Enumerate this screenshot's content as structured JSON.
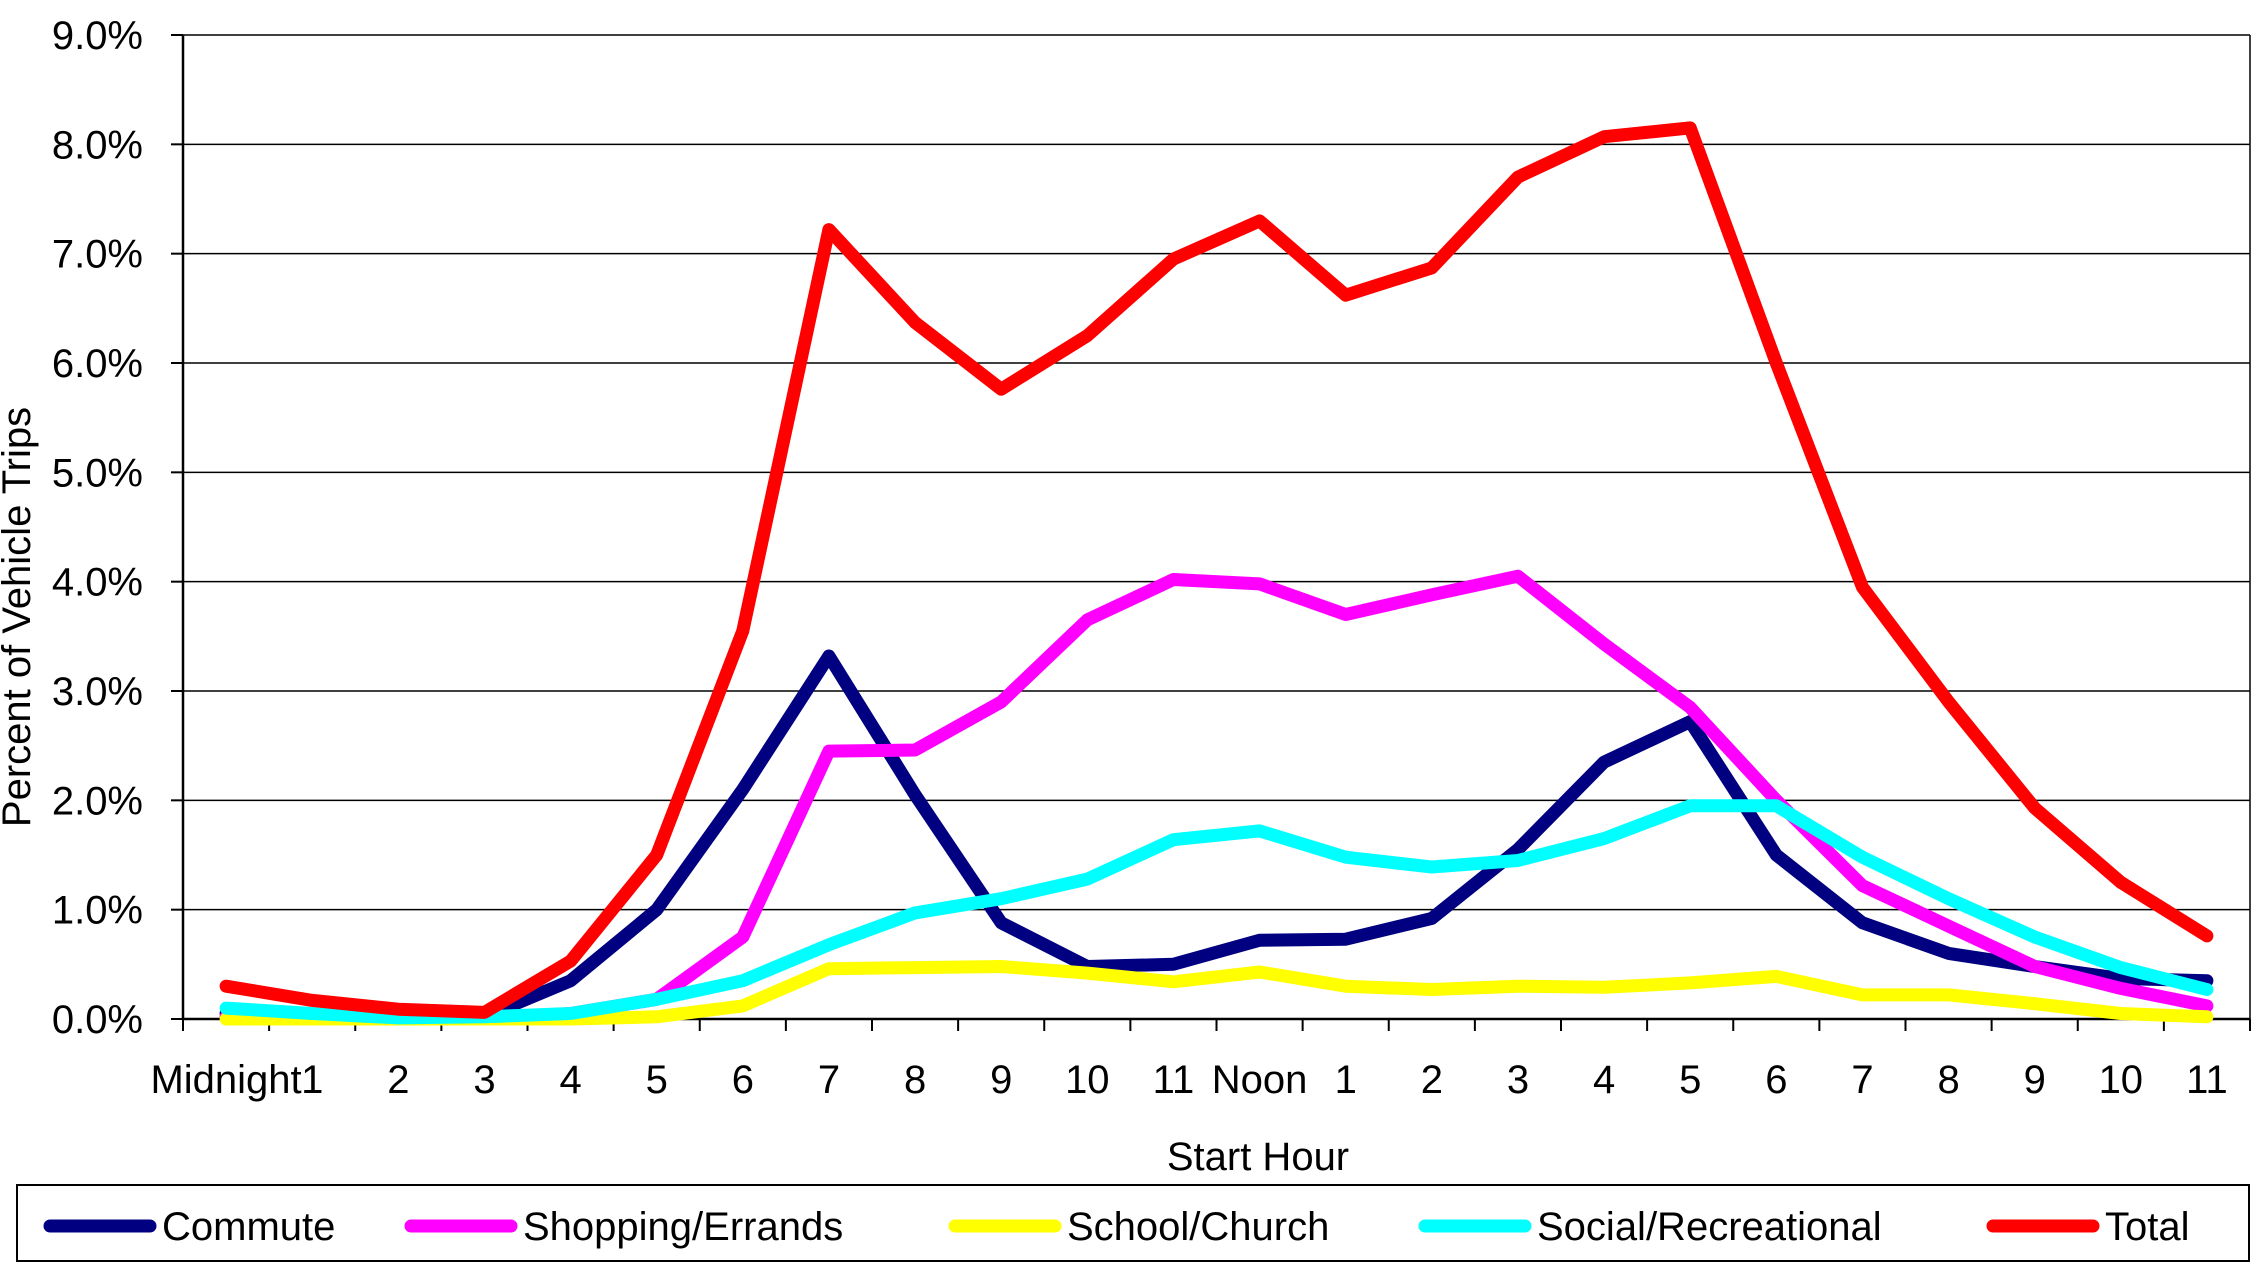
{
  "chart_data": {
    "type": "line",
    "title": "",
    "xlabel": "Start Hour",
    "ylabel": "Percent of Vehicle Trips",
    "ylim": [
      0,
      9
    ],
    "y_ticks": [
      "0.0%",
      "1.0%",
      "2.0%",
      "3.0%",
      "4.0%",
      "5.0%",
      "6.0%",
      "7.0%",
      "8.0%",
      "9.0%"
    ],
    "grid": "horizontal",
    "legend_position": "bottom",
    "categories": [
      "Midnight",
      "1",
      "2",
      "3",
      "4",
      "5",
      "6",
      "7",
      "8",
      "9",
      "10",
      "11",
      "Noon",
      "1",
      "2",
      "3",
      "4",
      "5",
      "6",
      "7",
      "8",
      "9",
      "10",
      "11"
    ],
    "series": [
      {
        "name": "Commute",
        "color": "#000080",
        "values": [
          0.05,
          0.03,
          0.01,
          0.02,
          0.35,
          1.0,
          2.1,
          3.32,
          2.05,
          0.88,
          0.48,
          0.5,
          0.72,
          0.73,
          0.92,
          1.55,
          2.35,
          2.72,
          1.5,
          0.88,
          0.6,
          0.48,
          0.37,
          0.35
        ]
      },
      {
        "name": "Shopping/Errands",
        "color": "#FF00FF",
        "values": [
          0.02,
          0.01,
          0.0,
          0.0,
          0.05,
          0.18,
          0.75,
          2.45,
          2.46,
          2.9,
          3.65,
          4.02,
          3.98,
          3.7,
          3.88,
          4.05,
          3.43,
          2.85,
          2.0,
          1.22,
          0.85,
          0.48,
          0.28,
          0.12
        ]
      },
      {
        "name": "School/Church",
        "color": "#FFFF00",
        "values": [
          0.0,
          0.0,
          0.0,
          0.0,
          0.0,
          0.02,
          0.12,
          0.46,
          0.47,
          0.48,
          0.42,
          0.34,
          0.43,
          0.3,
          0.27,
          0.3,
          0.29,
          0.33,
          0.39,
          0.22,
          0.22,
          0.14,
          0.05,
          0.02
        ]
      },
      {
        "name": "Social/Recreational",
        "color": "#00FFFF",
        "values": [
          0.1,
          0.05,
          0.01,
          0.02,
          0.05,
          0.18,
          0.35,
          0.68,
          0.97,
          1.1,
          1.28,
          1.64,
          1.72,
          1.48,
          1.39,
          1.45,
          1.65,
          1.95,
          1.95,
          1.48,
          1.1,
          0.75,
          0.47,
          0.27
        ]
      },
      {
        "name": "Total",
        "color": "#FF0000",
        "values": [
          0.3,
          0.17,
          0.09,
          0.06,
          0.53,
          1.5,
          3.55,
          7.22,
          6.37,
          5.76,
          6.25,
          6.95,
          7.3,
          6.62,
          6.87,
          7.7,
          8.07,
          8.15,
          6.0,
          3.95,
          2.9,
          1.93,
          1.25,
          0.76
        ]
      }
    ]
  }
}
